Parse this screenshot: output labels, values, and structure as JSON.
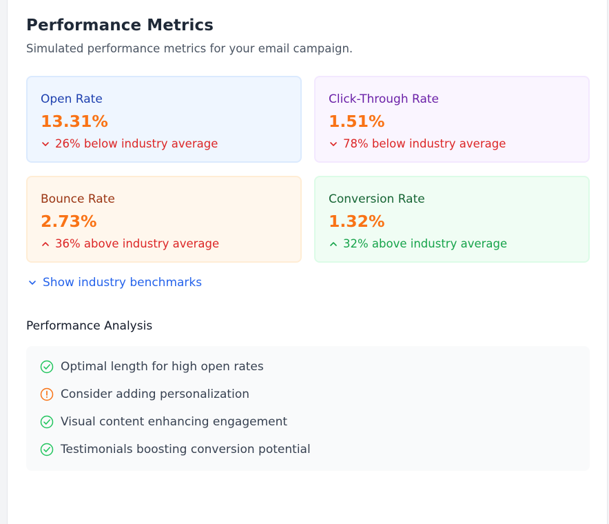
{
  "header": {
    "title": "Performance Metrics",
    "subtitle": "Simulated performance metrics for your email campaign."
  },
  "metrics": [
    {
      "label": "Open Rate",
      "value": "13.31%",
      "comparison": "26% below industry average",
      "direction": "down",
      "icon": "chevron-down-icon"
    },
    {
      "label": "Click-Through Rate",
      "value": "1.51%",
      "comparison": "78% below industry average",
      "direction": "down",
      "icon": "chevron-down-icon"
    },
    {
      "label": "Bounce Rate",
      "value": "2.73%",
      "comparison": "36% above industry average",
      "direction": "up",
      "icon": "chevron-up-icon"
    },
    {
      "label": "Conversion Rate",
      "value": "1.32%",
      "comparison": "32% above industry average",
      "direction": "up",
      "icon": "chevron-up-icon"
    }
  ],
  "benchmarks_toggle": {
    "label": "Show industry benchmarks",
    "icon": "chevron-down-icon"
  },
  "analysis": {
    "title": "Performance Analysis",
    "items": [
      {
        "text": "Optimal length for high open rates",
        "status": "good",
        "icon": "check-circle-icon"
      },
      {
        "text": "Consider adding personalization",
        "status": "warning",
        "icon": "alert-circle-icon"
      },
      {
        "text": "Visual content enhancing engagement",
        "status": "good",
        "icon": "check-circle-icon"
      },
      {
        "text": "Testimonials boosting conversion potential",
        "status": "good",
        "icon": "check-circle-icon"
      }
    ]
  },
  "colors": {
    "value": "#f97316",
    "negative": "#dc2626",
    "positive": "#16a34a",
    "link": "#2563eb",
    "good_icon": "#22c55e",
    "warning_icon": "#f97316"
  }
}
